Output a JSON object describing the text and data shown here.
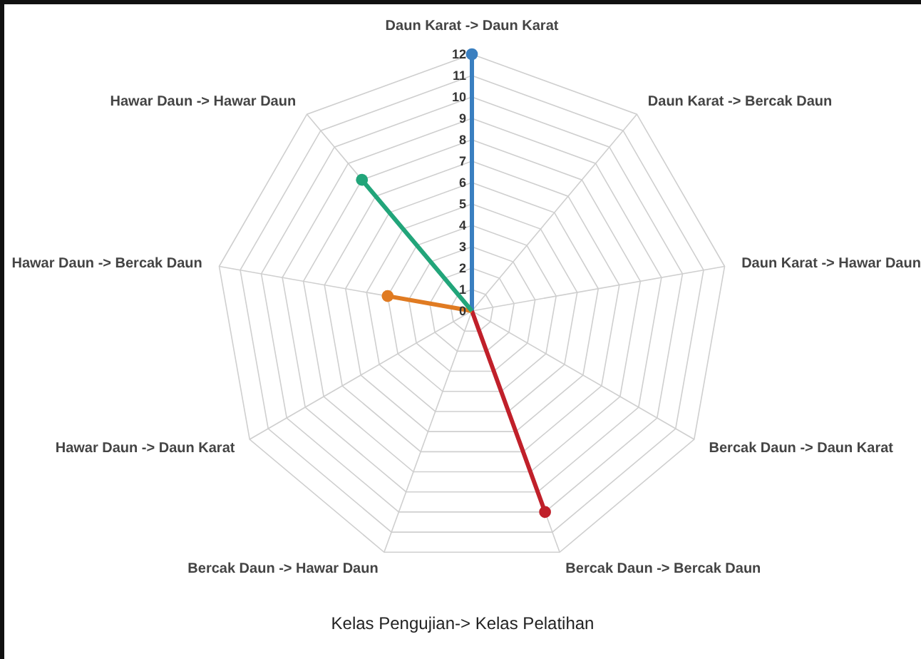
{
  "chart_data": {
    "type": "radar",
    "title": "Kelas Pengujian-> Kelas Pelatihan",
    "categories": [
      "Daun Karat -> Daun Karat",
      "Daun Karat -> Bercak Daun",
      "Daun Karat -> Hawar Daun",
      "Bercak Daun -> Daun Karat",
      "Bercak Daun -> Bercak Daun",
      "Bercak Daun -> Hawar Daun",
      "Hawar Daun -> Daun Karat",
      "Hawar Daun -> Bercak Daun",
      "Hawar Daun -> Hawar Daun"
    ],
    "series": [
      {
        "color": "#3a7fc0",
        "values": [
          12,
          0,
          0,
          0,
          0,
          0,
          0,
          0,
          0
        ]
      },
      {
        "color": "#c0202a",
        "values": [
          0,
          0,
          0,
          0,
          10,
          0,
          0,
          0,
          0
        ]
      },
      {
        "color": "#e07b22",
        "values": [
          0,
          0,
          0,
          0,
          0,
          0,
          0,
          4,
          0
        ]
      },
      {
        "color": "#22a57a",
        "values": [
          0,
          0,
          0,
          0,
          0,
          0,
          0,
          0,
          8
        ]
      }
    ],
    "ylim": [
      0,
      12
    ],
    "yticks": [
      0,
      1,
      2,
      3,
      4,
      5,
      6,
      7,
      8,
      9,
      10,
      11,
      12
    ],
    "grid": true,
    "marker": "circle"
  }
}
